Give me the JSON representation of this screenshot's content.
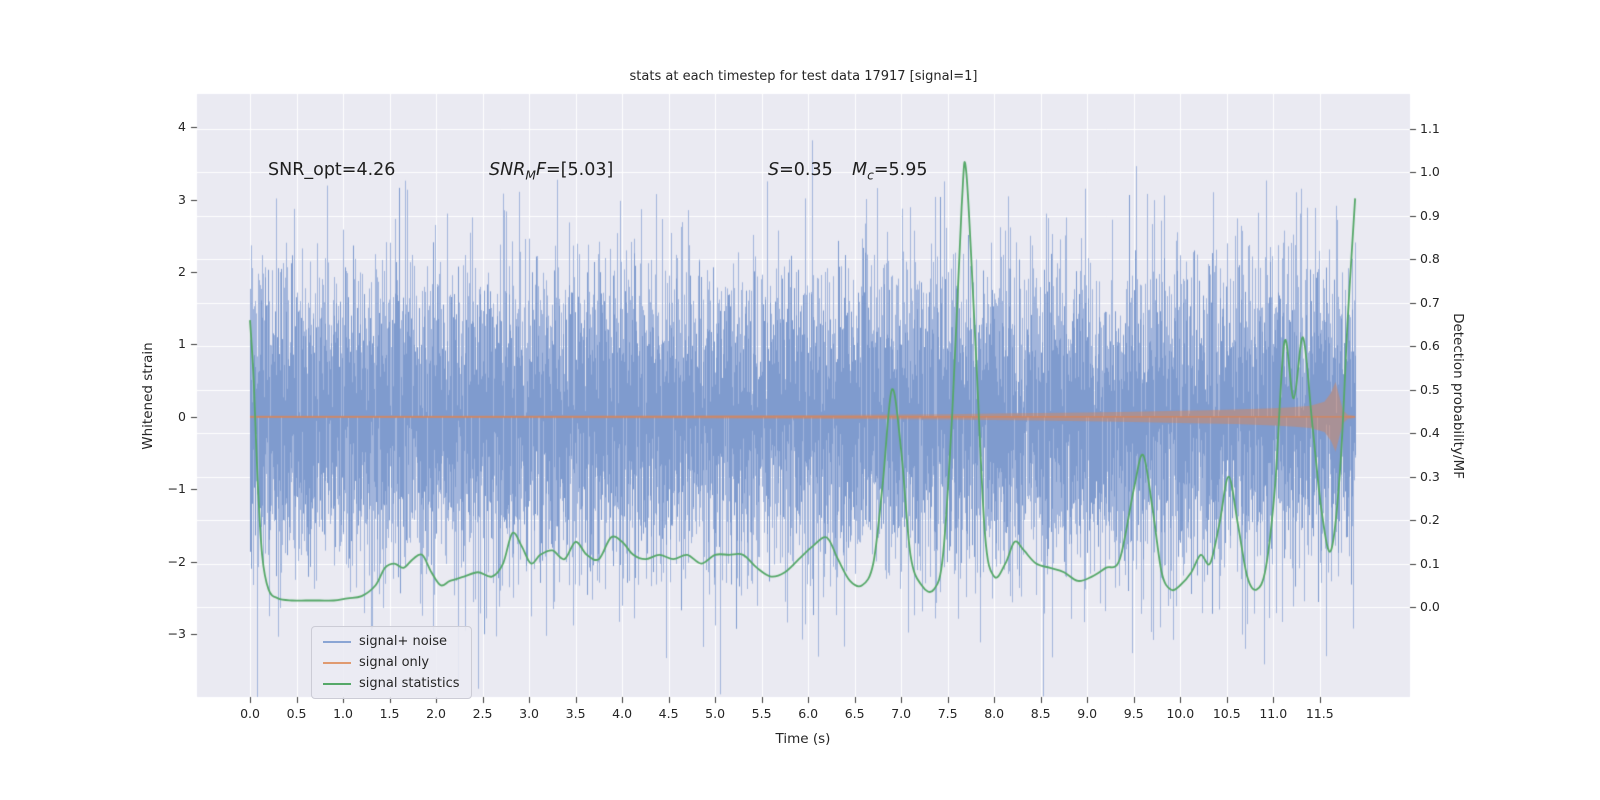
{
  "title": "stats at each timestep for test data 17917 [signal=1]",
  "annotations": {
    "snr_opt": "SNR_opt=4.26",
    "snr_mf_pre": "SNR",
    "snr_mf_sub": "M",
    "snr_mf_mid": "F",
    "snr_mf_post": "=[5.03]",
    "s_pre": "S",
    "s_post": "=0.35",
    "mc_pre": "M",
    "mc_sub": "c",
    "mc_post": "=5.95"
  },
  "legend": {
    "items": [
      {
        "label": "signal+ noise",
        "color": "#8aa5d4"
      },
      {
        "label": "signal only",
        "color": "#e09a70"
      },
      {
        "label": "signal statistics",
        "color": "#55a868"
      }
    ]
  },
  "chart_data": {
    "type": "line",
    "title": "stats at each timestep for test data 17917 [signal=1]",
    "xlabel": "Time (s)",
    "ylabel_left": "Whitened strain",
    "ylabel_right": "Detection probability/MF",
    "background": "#eaeaf2",
    "grid": {
      "color": "#ffffff",
      "horizontal": "right-axis-ticks",
      "vertical": "x-axis-ticks"
    },
    "xlim": [
      -0.57,
      12.47
    ],
    "ylim_left": [
      -3.87,
      4.46
    ],
    "ylim_right": [
      -0.207,
      1.18
    ],
    "x_ticks": [
      [
        0.0,
        "0.0"
      ],
      [
        0.5,
        "0.5"
      ],
      [
        1.0,
        "1.0"
      ],
      [
        1.5,
        "1.5"
      ],
      [
        2.0,
        "2.0"
      ],
      [
        2.5,
        "2.5"
      ],
      [
        3.0,
        "3.0"
      ],
      [
        3.5,
        "3.5"
      ],
      [
        4.0,
        "4.0"
      ],
      [
        4.5,
        "4.5"
      ],
      [
        5.0,
        "5.0"
      ],
      [
        5.5,
        "5.5"
      ],
      [
        6.0,
        "6.0"
      ],
      [
        6.5,
        "6.5"
      ],
      [
        7.0,
        "7.0"
      ],
      [
        7.5,
        "7.5"
      ],
      [
        8.0,
        "8.0"
      ],
      [
        8.5,
        "8.5"
      ],
      [
        9.0,
        "9.0"
      ],
      [
        9.5,
        "9.5"
      ],
      [
        10.0,
        "10.0"
      ],
      [
        10.5,
        "10.5"
      ],
      [
        11.0,
        "11.0"
      ],
      [
        11.5,
        "11.5"
      ]
    ],
    "y_left_ticks": [
      [
        4,
        "4"
      ],
      [
        3,
        "3"
      ],
      [
        2,
        "2"
      ],
      [
        1,
        "1"
      ],
      [
        0,
        "0"
      ],
      [
        -1,
        "−1"
      ],
      [
        -2,
        "−2"
      ],
      [
        -3,
        "−3"
      ]
    ],
    "y_right_ticks": [
      [
        1.1,
        "1.1"
      ],
      [
        1.0,
        "1.0"
      ],
      [
        0.9,
        "0.9"
      ],
      [
        0.8,
        "0.8"
      ],
      [
        0.7,
        "0.7"
      ],
      [
        0.6,
        "0.6"
      ],
      [
        0.5,
        "0.5"
      ],
      [
        0.4,
        "0.4"
      ],
      [
        0.3,
        "0.3"
      ],
      [
        0.2,
        "0.2"
      ],
      [
        0.1,
        "0.1"
      ],
      [
        0.0,
        "0.0"
      ]
    ],
    "series": [
      {
        "name": "signal+ noise",
        "kind": "noise-band",
        "axis": "left",
        "color_outer": "#a2b5dc",
        "color_core": "#7f9bce",
        "t_start": 0.0,
        "t_end": 11.88,
        "std": 1.05,
        "std_core": 0.85,
        "samples_per_step": 8,
        "core_samples_per_step": 4,
        "seed": 17917,
        "typical_range": [
          -2.5,
          2.5
        ],
        "extreme_range": [
          -3.7,
          4.1
        ]
      },
      {
        "name": "signal only",
        "kind": "envelope",
        "axis": "left",
        "line_color": "#dd8452",
        "fill_color": "#dd8452",
        "fill_alpha": 0.45,
        "center": 0,
        "envelope": [
          [
            0,
            0.015
          ],
          [
            2,
            0.016
          ],
          [
            4,
            0.02
          ],
          [
            5,
            0.022
          ],
          [
            6,
            0.026
          ],
          [
            7,
            0.032
          ],
          [
            7.5,
            0.036
          ],
          [
            8,
            0.045
          ],
          [
            8.5,
            0.052
          ],
          [
            9,
            0.06
          ],
          [
            9.5,
            0.07
          ],
          [
            10,
            0.085
          ],
          [
            10.3,
            0.092
          ],
          [
            10.6,
            0.1
          ],
          [
            11,
            0.12
          ],
          [
            11.2,
            0.132
          ],
          [
            11.4,
            0.155
          ],
          [
            11.55,
            0.21
          ],
          [
            11.62,
            0.33
          ],
          [
            11.67,
            0.48
          ],
          [
            11.71,
            0.28
          ],
          [
            11.75,
            0.09
          ],
          [
            11.8,
            0.03
          ],
          [
            11.88,
            0.012
          ]
        ]
      },
      {
        "name": "signal statistics",
        "kind": "line",
        "axis": "right",
        "color": "#55a868",
        "width": 1.8,
        "points": [
          [
            0.0,
            0.66
          ],
          [
            0.04,
            0.52
          ],
          [
            0.08,
            0.3
          ],
          [
            0.13,
            0.12
          ],
          [
            0.2,
            0.04
          ],
          [
            0.3,
            0.02
          ],
          [
            0.45,
            0.015
          ],
          [
            0.6,
            0.015
          ],
          [
            0.75,
            0.015
          ],
          [
            0.9,
            0.015
          ],
          [
            1.05,
            0.02
          ],
          [
            1.2,
            0.025
          ],
          [
            1.35,
            0.05
          ],
          [
            1.45,
            0.09
          ],
          [
            1.55,
            0.1
          ],
          [
            1.65,
            0.09
          ],
          [
            1.75,
            0.11
          ],
          [
            1.85,
            0.12
          ],
          [
            1.95,
            0.08
          ],
          [
            2.05,
            0.05
          ],
          [
            2.15,
            0.06
          ],
          [
            2.3,
            0.07
          ],
          [
            2.45,
            0.08
          ],
          [
            2.6,
            0.07
          ],
          [
            2.72,
            0.1
          ],
          [
            2.82,
            0.17
          ],
          [
            2.92,
            0.14
          ],
          [
            3.02,
            0.1
          ],
          [
            3.12,
            0.12
          ],
          [
            3.25,
            0.13
          ],
          [
            3.38,
            0.11
          ],
          [
            3.5,
            0.15
          ],
          [
            3.62,
            0.12
          ],
          [
            3.75,
            0.11
          ],
          [
            3.88,
            0.16
          ],
          [
            4.0,
            0.15
          ],
          [
            4.12,
            0.12
          ],
          [
            4.25,
            0.11
          ],
          [
            4.4,
            0.12
          ],
          [
            4.55,
            0.11
          ],
          [
            4.7,
            0.12
          ],
          [
            4.85,
            0.1
          ],
          [
            5.0,
            0.12
          ],
          [
            5.15,
            0.12
          ],
          [
            5.3,
            0.12
          ],
          [
            5.45,
            0.09
          ],
          [
            5.6,
            0.07
          ],
          [
            5.75,
            0.08
          ],
          [
            5.9,
            0.11
          ],
          [
            6.05,
            0.14
          ],
          [
            6.2,
            0.16
          ],
          [
            6.32,
            0.11
          ],
          [
            6.45,
            0.06
          ],
          [
            6.58,
            0.05
          ],
          [
            6.7,
            0.1
          ],
          [
            6.8,
            0.28
          ],
          [
            6.9,
            0.5
          ],
          [
            7.0,
            0.36
          ],
          [
            7.1,
            0.12
          ],
          [
            7.22,
            0.05
          ],
          [
            7.35,
            0.04
          ],
          [
            7.45,
            0.12
          ],
          [
            7.55,
            0.45
          ],
          [
            7.65,
            0.92
          ],
          [
            7.7,
            1.0
          ],
          [
            7.8,
            0.6
          ],
          [
            7.9,
            0.17
          ],
          [
            8.0,
            0.07
          ],
          [
            8.12,
            0.1
          ],
          [
            8.22,
            0.15
          ],
          [
            8.32,
            0.13
          ],
          [
            8.45,
            0.1
          ],
          [
            8.6,
            0.09
          ],
          [
            8.75,
            0.08
          ],
          [
            8.9,
            0.06
          ],
          [
            9.05,
            0.07
          ],
          [
            9.2,
            0.09
          ],
          [
            9.35,
            0.11
          ],
          [
            9.5,
            0.27
          ],
          [
            9.6,
            0.35
          ],
          [
            9.7,
            0.23
          ],
          [
            9.8,
            0.08
          ],
          [
            9.9,
            0.04
          ],
          [
            10.0,
            0.05
          ],
          [
            10.12,
            0.08
          ],
          [
            10.22,
            0.12
          ],
          [
            10.32,
            0.1
          ],
          [
            10.42,
            0.19
          ],
          [
            10.52,
            0.3
          ],
          [
            10.62,
            0.19
          ],
          [
            10.72,
            0.07
          ],
          [
            10.82,
            0.04
          ],
          [
            10.92,
            0.09
          ],
          [
            11.02,
            0.28
          ],
          [
            11.12,
            0.61
          ],
          [
            11.22,
            0.48
          ],
          [
            11.32,
            0.62
          ],
          [
            11.42,
            0.42
          ],
          [
            11.52,
            0.22
          ],
          [
            11.62,
            0.13
          ],
          [
            11.72,
            0.32
          ],
          [
            11.8,
            0.66
          ],
          [
            11.88,
            0.94
          ]
        ]
      }
    ]
  }
}
